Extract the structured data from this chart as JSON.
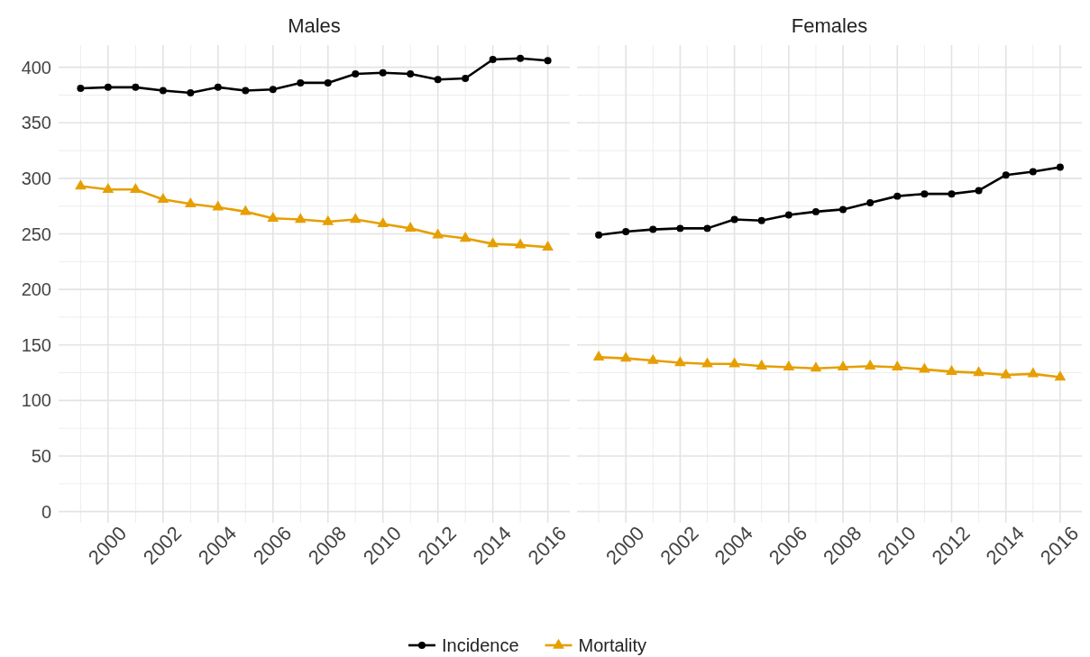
{
  "chart_data": [
    {
      "type": "line",
      "title": "Males",
      "x": [
        1999,
        2000,
        2001,
        2002,
        2003,
        2004,
        2005,
        2006,
        2007,
        2008,
        2009,
        2010,
        2011,
        2012,
        2013,
        2014,
        2015,
        2016
      ],
      "series": [
        {
          "color": "#000000",
          "marker": "circle",
          "values": [
            381,
            382,
            382,
            379,
            377,
            382,
            379,
            380,
            386,
            386,
            394,
            395,
            394,
            389,
            390,
            407,
            408,
            406
          ]
        },
        {
          "color": "#e69f00",
          "marker": "triangle",
          "values": [
            293,
            290,
            290,
            281,
            277,
            274,
            270,
            264,
            263,
            261,
            263,
            259,
            255,
            249,
            246,
            241,
            240,
            238
          ]
        }
      ],
      "xlim": [
        1998.2,
        2016.8
      ],
      "xticks": [
        2000,
        2002,
        2004,
        2006,
        2008,
        2010,
        2012,
        2014,
        2016
      ],
      "ylim": [
        -10,
        420
      ],
      "yticks": [
        0,
        50,
        100,
        150,
        200,
        250,
        300,
        350,
        400
      ],
      "grid": true
    },
    {
      "type": "line",
      "title": "Females",
      "x": [
        1999,
        2000,
        2001,
        2002,
        2003,
        2004,
        2005,
        2006,
        2007,
        2008,
        2009,
        2010,
        2011,
        2012,
        2013,
        2014,
        2015,
        2016
      ],
      "series": [
        {
          "name": "Incidence",
          "color": "#000000",
          "marker": "circle",
          "values": [
            249,
            252,
            254,
            255,
            255,
            263,
            262,
            267,
            270,
            272,
            278,
            284,
            286,
            286,
            289,
            303,
            306,
            310
          ]
        },
        {
          "name": "Mortality",
          "color": "#e69f00",
          "marker": "triangle",
          "values": [
            139,
            138,
            136,
            134,
            133,
            133,
            131,
            130,
            129,
            130,
            131,
            130,
            128,
            126,
            125,
            123,
            124,
            121
          ]
        }
      ],
      "xlim": [
        1998.2,
        2016.8
      ],
      "xticks": [
        2000,
        2002,
        2004,
        2006,
        2008,
        2010,
        2012,
        2014,
        2016
      ],
      "ylim": [
        -10,
        420
      ],
      "yticks": [
        0,
        50,
        100,
        150,
        200,
        250,
        300,
        350,
        400
      ],
      "grid": true,
      "tick_labels": "x",
      "legend": "bottom"
    }
  ]
}
